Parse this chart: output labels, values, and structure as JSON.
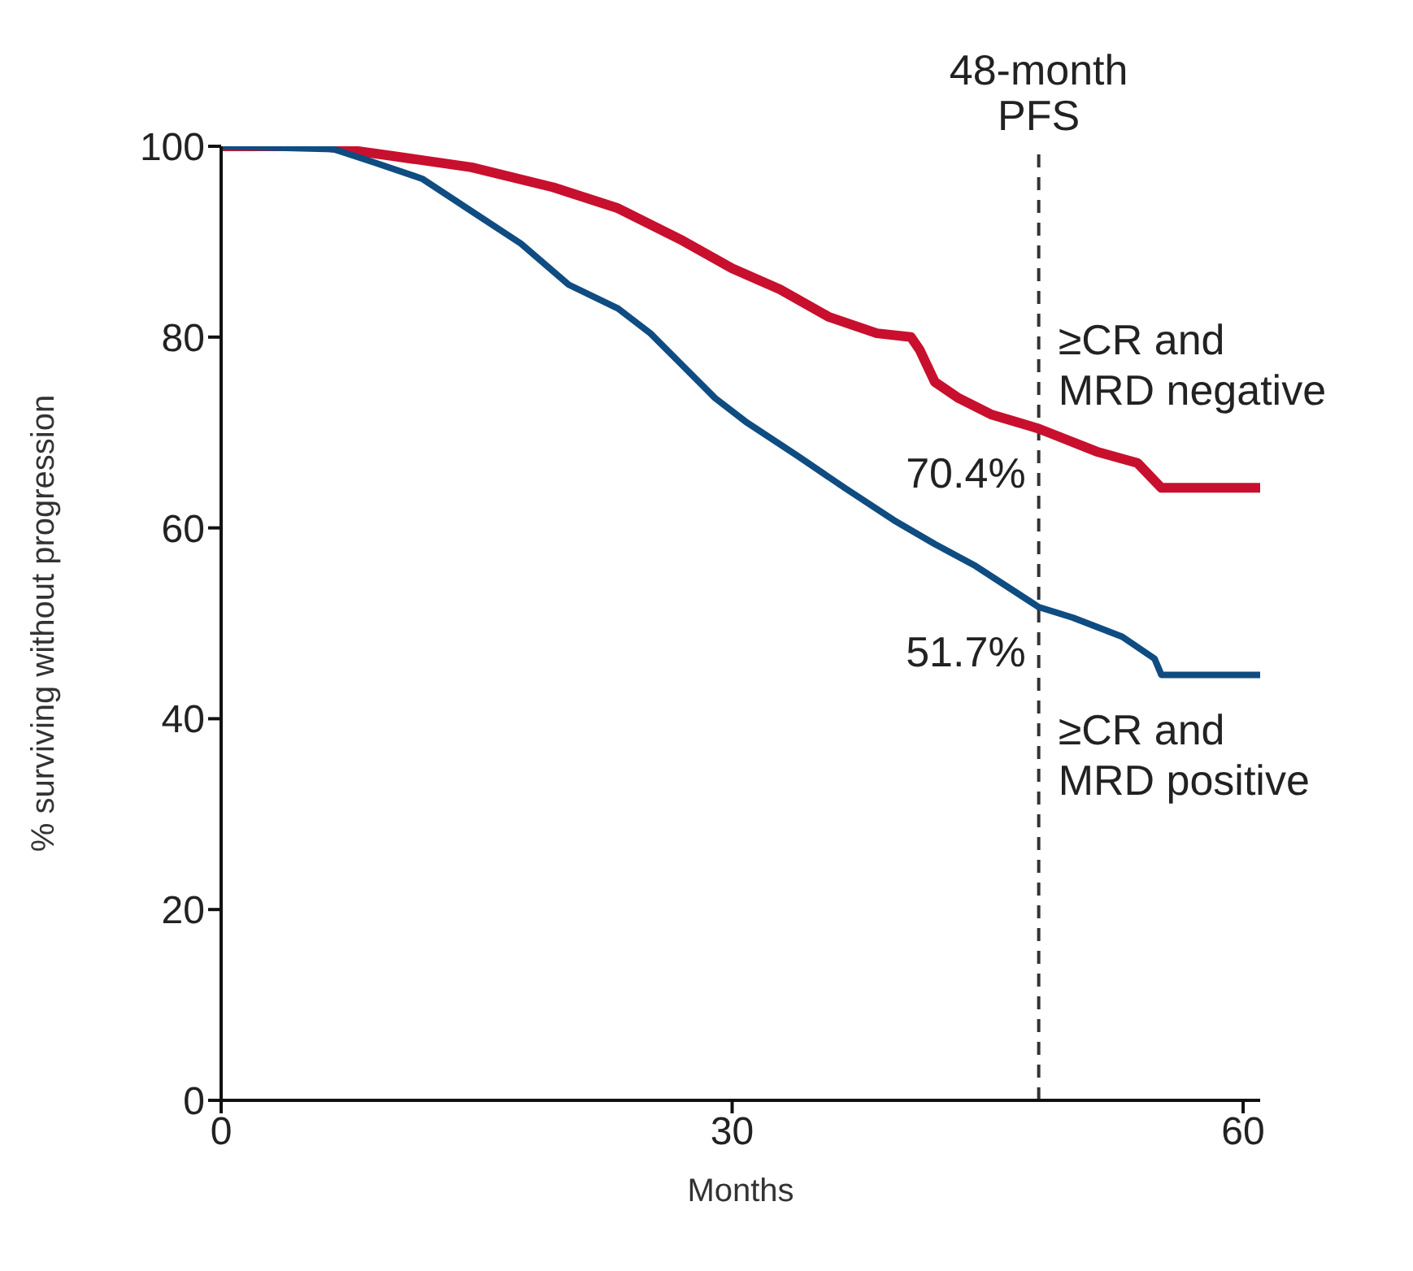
{
  "chart_data": {
    "type": "line",
    "xlabel": "Months",
    "ylabel": "% surviving without progression",
    "xlim": [
      0,
      61
    ],
    "xticks": [
      0,
      30,
      60
    ],
    "ylim": [
      0,
      100
    ],
    "yticks": [
      0,
      20,
      40,
      60,
      80,
      100
    ],
    "series": [
      {
        "name": "≥CR and MRD negative",
        "color": "#c8102e",
        "x": [
          0,
          6,
          10,
          14.7,
          19.5,
          23.3,
          27.1,
          30,
          32.8,
          35.7,
          38.5,
          40.5,
          41,
          41.9,
          43.3,
          45.2,
          48,
          49,
          51.4,
          53.8,
          55.2,
          57.6,
          61
        ],
        "values": [
          100,
          100,
          99,
          97.8,
          95.7,
          93.5,
          90.1,
          87.2,
          85,
          82.1,
          80.4,
          80,
          78.7,
          75.3,
          73.6,
          71.9,
          70.4,
          69.7,
          68,
          66.8,
          64.2,
          64.2,
          64.2
        ]
      },
      {
        "name": "≥CR and MRD positive",
        "color": "#0f4c81",
        "x": [
          0,
          6.6,
          9,
          11.8,
          14.7,
          17.6,
          20.4,
          23.3,
          25.2,
          27.1,
          29,
          30.9,
          33.8,
          36.6,
          39.5,
          41.9,
          44.3,
          48,
          50,
          52.9,
          54.8,
          55.2,
          61
        ],
        "values": [
          100,
          99.7,
          98.3,
          96.6,
          93.2,
          89.8,
          85.5,
          83,
          80.4,
          77,
          73.6,
          71,
          67.6,
          64.2,
          60.8,
          58.3,
          56,
          51.7,
          50.6,
          48.6,
          46.3,
          44.6,
          44.6
        ]
      }
    ],
    "ref_lines": [
      {
        "axis": "x",
        "value": 48,
        "label": "48-month\nPFS",
        "color": "#333333",
        "line_style": "dashed"
      }
    ],
    "annotations": [
      {
        "text": "70.4%",
        "x": 48,
        "y": 70.4
      },
      {
        "text": "51.7%",
        "x": 48,
        "y": 51.7
      }
    ]
  }
}
